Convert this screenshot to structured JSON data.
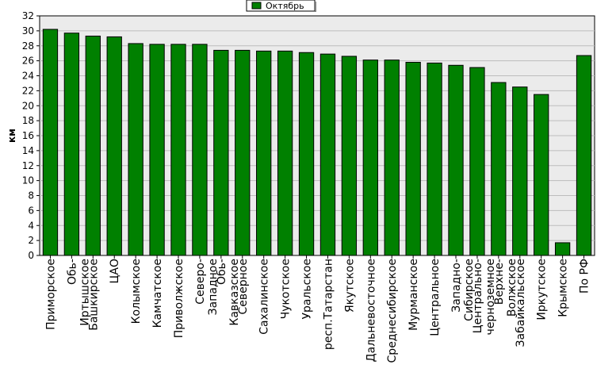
{
  "chart_data": {
    "type": "bar",
    "title": "",
    "xlabel": "",
    "ylabel": "км",
    "ylim": [
      0,
      32
    ],
    "ytick_step": 2,
    "grid": true,
    "legend_placement": "top-center",
    "series": [
      {
        "name": "Октябрь",
        "color": "#008000",
        "values": [
          30.2,
          29.7,
          29.3,
          29.2,
          28.3,
          28.2,
          28.2,
          28.2,
          27.4,
          27.4,
          27.3,
          27.3,
          27.1,
          26.9,
          26.6,
          26.1,
          26.1,
          25.8,
          25.7,
          25.4,
          25.1,
          23.1,
          22.5,
          21.5,
          1.7,
          26.7
        ]
      }
    ],
    "categories": [
      "Приморское",
      "Обь-Иртышское",
      "Башкирское",
      "ЦАО",
      "Колымское",
      "Камчатское",
      "Приволжское",
      "Северо-Западное",
      "Обь-Кавказское",
      "Северное",
      "Сахалинское",
      "Чукотское",
      "Уральское",
      "респ.Татарстан",
      "Якутское",
      "Дальневосточное",
      "Среднесибирское",
      "Мурманское",
      "Центральное",
      "Западно-Сибирское",
      "Центрально-черноземное",
      "Верхне-Волжское",
      "Забайкальское",
      "Иркутское",
      "Крымское",
      "По РФ"
    ],
    "category_lines": [
      [
        "Приморское"
      ],
      [
        "Обь-",
        "Иртышское"
      ],
      [
        "Башкирское"
      ],
      [
        "ЦАО"
      ],
      [
        "Колымское"
      ],
      [
        "Камчатское"
      ],
      [
        "Приволжское"
      ],
      [
        "Северо-",
        "Западное"
      ],
      [
        "Обь-",
        "Кавказское"
      ],
      [
        "Северное"
      ],
      [
        "Сахалинское"
      ],
      [
        "Чукотское"
      ],
      [
        "Уральское"
      ],
      [
        "респ.Татарстан"
      ],
      [
        "Якутское"
      ],
      [
        "Дальневосточное"
      ],
      [
        "Среднесибирское"
      ],
      [
        "Мурманское"
      ],
      [
        "Центральное"
      ],
      [
        "Западно-",
        "Сибирское"
      ],
      [
        "Центрально-",
        "черноземное"
      ],
      [
        "Верхне-",
        "Волжское"
      ],
      [
        "Забайкальское"
      ],
      [
        "Иркутское"
      ],
      [
        "Крымское"
      ],
      [
        "По РФ"
      ]
    ]
  },
  "colors": {
    "plot_background": "#ebebeb",
    "grid": "#bdbdbd",
    "bar_border": "#000000"
  }
}
